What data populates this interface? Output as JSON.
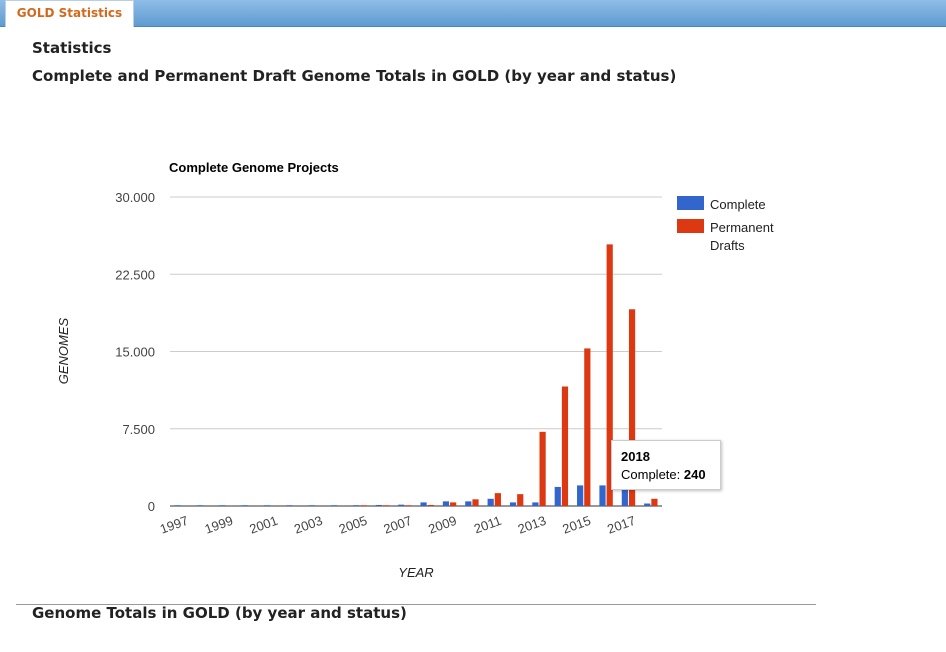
{
  "tab": {
    "label": "GOLD Statistics"
  },
  "page": {
    "heading": "Statistics",
    "subheading": "Complete and Permanent Draft Genome Totals in GOLD (by year and status)",
    "section2": "Genome Totals in GOLD (by year and status)"
  },
  "chart_data": {
    "type": "bar",
    "title": "Complete Genome Projects",
    "xlabel": "YEAR",
    "ylabel": "GENOMES",
    "categories": [
      "1997",
      "1998",
      "1999",
      "2000",
      "2001",
      "2002",
      "2003",
      "2004",
      "2005",
      "2006",
      "2007",
      "2008",
      "2009",
      "2010",
      "2011",
      "2012",
      "2013",
      "2014",
      "2015",
      "2016",
      "2017",
      "2018"
    ],
    "x_tick_labels": [
      "1997",
      "1999",
      "2001",
      "2003",
      "2005",
      "2007",
      "2009",
      "2011",
      "2013",
      "2015",
      "2017"
    ],
    "y_tick_labels": [
      "0",
      "7.500",
      "15.000",
      "22.500",
      "30.000"
    ],
    "ylim": [
      0,
      30000
    ],
    "legend_position": "right",
    "series": [
      {
        "name": "Complete",
        "color": "#3366cc",
        "values": [
          5,
          10,
          15,
          20,
          25,
          30,
          40,
          50,
          80,
          100,
          130,
          350,
          450,
          450,
          700,
          350,
          350,
          1850,
          2000,
          2000,
          1850,
          240
        ]
      },
      {
        "name": "Permanent Drafts",
        "color": "#dc3912",
        "values": [
          0,
          0,
          0,
          0,
          0,
          0,
          0,
          0,
          5,
          10,
          20,
          100,
          350,
          650,
          1250,
          1150,
          7200,
          11600,
          15300,
          25400,
          19100,
          700
        ]
      }
    ],
    "tooltip": {
      "year": "2018",
      "label": "Complete:",
      "value": "240"
    }
  }
}
